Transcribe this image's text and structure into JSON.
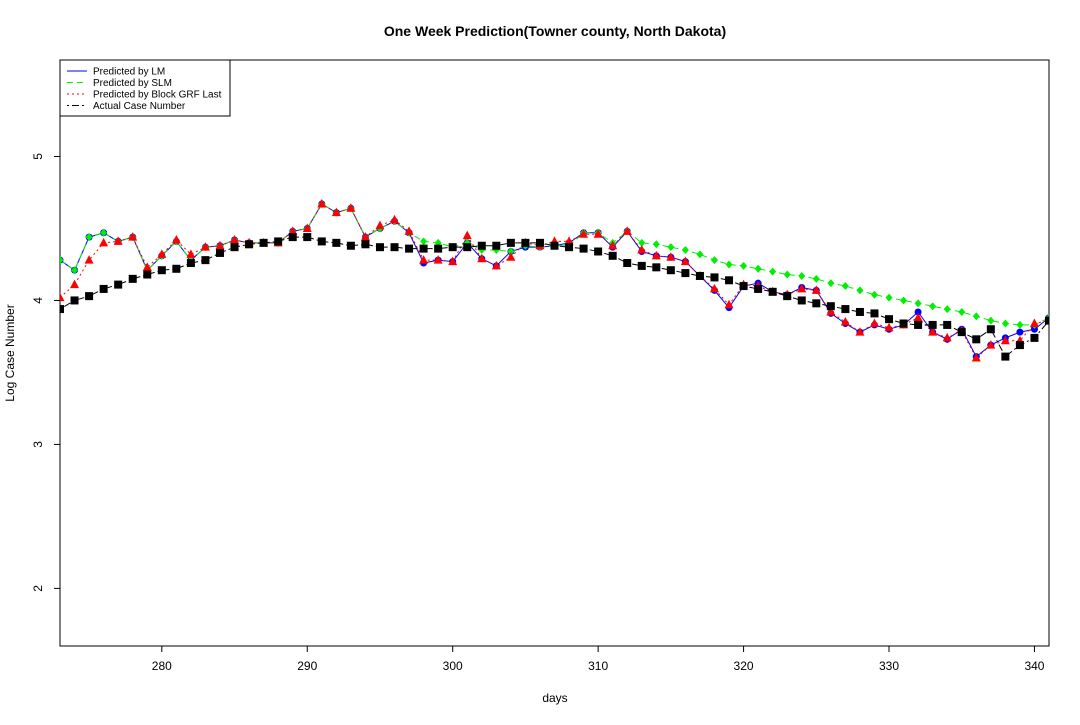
{
  "chart_data": {
    "type": "line",
    "title": "One Week Prediction(Towner county, North Dakota)",
    "xlabel": "days",
    "ylabel": "Log Case Number",
    "x": [
      273,
      274,
      275,
      276,
      277,
      278,
      279,
      280,
      281,
      282,
      283,
      284,
      285,
      286,
      287,
      288,
      289,
      290,
      291,
      292,
      293,
      294,
      295,
      296,
      297,
      298,
      299,
      300,
      301,
      302,
      303,
      304,
      305,
      306,
      307,
      308,
      309,
      310,
      311,
      312,
      313,
      314,
      315,
      316,
      317,
      318,
      319,
      320,
      321,
      322,
      323,
      324,
      325,
      326,
      327,
      328,
      329,
      330,
      331,
      332,
      333,
      334,
      335,
      336,
      337,
      338,
      339,
      340,
      341
    ],
    "xlim": [
      273,
      341
    ],
    "xticks": [
      280,
      290,
      300,
      310,
      320,
      330,
      340
    ],
    "ylim": [
      1.6,
      5.67
    ],
    "yticks": [
      2,
      3,
      4,
      5
    ],
    "legend": "top-left",
    "series": [
      {
        "name": "Predicted by LM",
        "color": "#0000ff",
        "dash": "solid",
        "marker": "circle",
        "values": [
          4.28,
          4.21,
          4.44,
          4.47,
          4.41,
          4.44,
          4.21,
          4.31,
          4.41,
          4.28,
          4.37,
          4.38,
          4.42,
          4.4,
          4.4,
          4.4,
          4.48,
          4.5,
          4.67,
          4.61,
          4.64,
          4.44,
          4.5,
          4.55,
          4.47,
          4.26,
          4.28,
          4.27,
          4.4,
          4.29,
          4.24,
          4.34,
          4.37,
          4.37,
          4.38,
          4.4,
          4.47,
          4.47,
          4.37,
          4.48,
          4.34,
          4.31,
          4.3,
          4.27,
          4.17,
          4.07,
          3.95,
          4.1,
          4.12,
          4.06,
          4.04,
          4.09,
          4.07,
          3.91,
          3.84,
          3.78,
          3.83,
          3.8,
          3.83,
          3.92,
          3.78,
          3.73,
          3.8,
          3.61,
          3.69,
          3.74,
          3.78,
          3.8,
          3.88
        ]
      },
      {
        "name": "Predicted by SLM",
        "color": "#00ee00",
        "dash": "dashed",
        "marker": "diamond",
        "values": [
          4.28,
          4.21,
          4.44,
          4.47,
          4.41,
          4.44,
          4.21,
          4.31,
          4.41,
          4.28,
          4.37,
          4.38,
          4.42,
          4.4,
          4.4,
          4.4,
          4.48,
          4.5,
          4.67,
          4.61,
          4.64,
          4.44,
          4.5,
          4.55,
          4.47,
          4.41,
          4.4,
          4.37,
          4.4,
          4.35,
          4.35,
          4.34,
          4.38,
          4.37,
          4.38,
          4.38,
          4.47,
          4.47,
          4.4,
          4.48,
          4.4,
          4.39,
          4.37,
          4.35,
          4.32,
          4.28,
          4.25,
          4.24,
          4.22,
          4.2,
          4.18,
          4.17,
          4.15,
          4.12,
          4.1,
          4.07,
          4.04,
          4.02,
          4.0,
          3.98,
          3.96,
          3.94,
          3.92,
          3.89,
          3.86,
          3.84,
          3.83,
          3.83,
          3.88
        ]
      },
      {
        "name": "Predicted by Block GRF Last",
        "color": "#ff0000",
        "dash": "dotted",
        "marker": "triangle",
        "values": [
          4.02,
          4.11,
          4.28,
          4.4,
          4.41,
          4.44,
          4.23,
          4.32,
          4.42,
          4.32,
          4.37,
          4.38,
          4.42,
          4.4,
          4.4,
          4.4,
          4.48,
          4.5,
          4.67,
          4.61,
          4.64,
          4.44,
          4.52,
          4.56,
          4.48,
          4.28,
          4.28,
          4.27,
          4.45,
          4.29,
          4.24,
          4.3,
          4.4,
          4.38,
          4.41,
          4.41,
          4.46,
          4.46,
          4.38,
          4.48,
          4.35,
          4.31,
          4.3,
          4.27,
          4.17,
          4.08,
          3.97,
          4.11,
          4.1,
          4.06,
          4.04,
          4.08,
          4.07,
          3.92,
          3.85,
          3.78,
          3.84,
          3.81,
          3.83,
          3.88,
          3.78,
          3.74,
          3.79,
          3.6,
          3.69,
          3.72,
          3.72,
          3.84,
          3.86
        ]
      },
      {
        "name": "Actual Case Number",
        "color": "#000000",
        "dash": "dashdot",
        "marker": "square",
        "values": [
          3.94,
          4.0,
          4.03,
          4.08,
          4.11,
          4.15,
          4.18,
          4.21,
          4.22,
          4.26,
          4.28,
          4.33,
          4.37,
          4.39,
          4.4,
          4.41,
          4.44,
          4.44,
          4.41,
          4.4,
          4.38,
          4.39,
          4.37,
          4.37,
          4.36,
          4.36,
          4.36,
          4.37,
          4.37,
          4.38,
          4.38,
          4.4,
          4.4,
          4.4,
          4.38,
          4.37,
          4.36,
          4.34,
          4.31,
          4.26,
          4.24,
          4.23,
          4.21,
          4.19,
          4.17,
          4.16,
          4.14,
          4.1,
          4.08,
          4.06,
          4.03,
          4.0,
          3.98,
          3.96,
          3.94,
          3.92,
          3.91,
          3.87,
          3.84,
          3.83,
          3.83,
          3.83,
          3.78,
          3.73,
          3.8,
          3.61,
          3.69,
          3.74,
          3.86
        ]
      }
    ]
  }
}
